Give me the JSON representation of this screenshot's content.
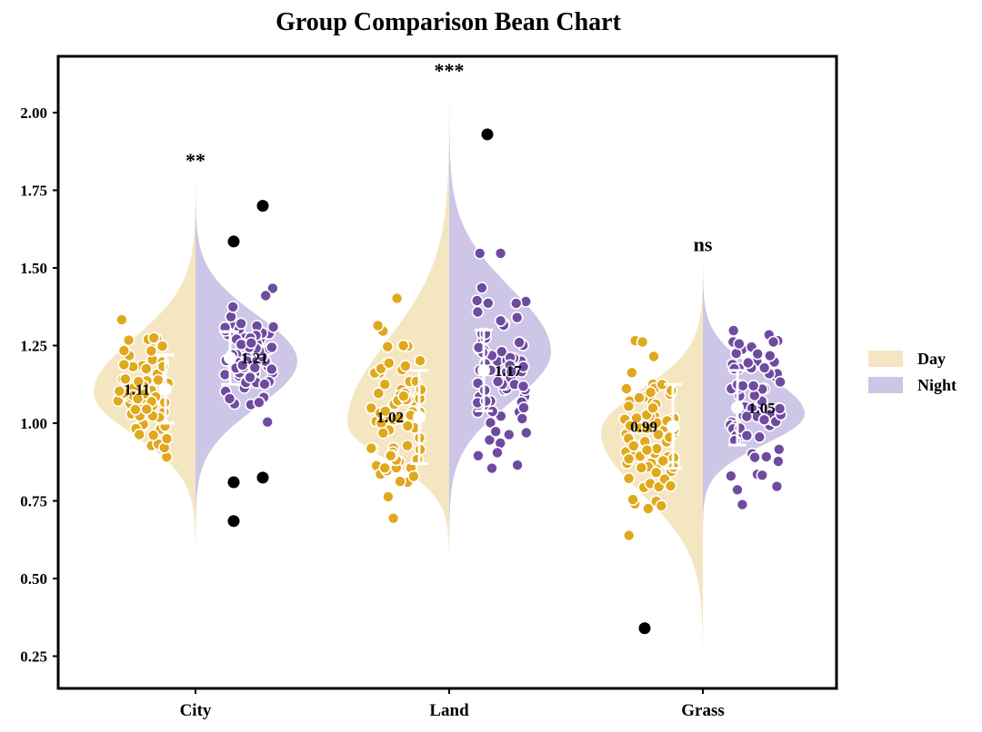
{
  "chart_data": {
    "type": "bean",
    "title": "Group Comparison Bean Chart",
    "xlabel": "",
    "ylabel": "",
    "ylim": [
      0.15,
      2.17
    ],
    "yticks": [
      0.25,
      0.5,
      0.75,
      1.0,
      1.25,
      1.5,
      1.75,
      2.0
    ],
    "ytick_labels": [
      "0.25",
      "0.50",
      "0.75",
      "1.00",
      "1.25",
      "1.50",
      "1.75",
      "2.00"
    ],
    "categories": [
      "City",
      "Land",
      "Grass"
    ],
    "series_names": [
      "Day",
      "Night"
    ],
    "colors": {
      "Day": {
        "fill": "#f5e6c2",
        "point": "#e0a81c"
      },
      "Night": {
        "fill": "#cdc6e6",
        "point": "#6f4ba0"
      },
      "outlier": "#000000",
      "errorbar": "#ffffff"
    },
    "groups": [
      {
        "category": "City",
        "significance": "**",
        "day": {
          "mean": 1.11,
          "mean_label": "1.11",
          "sd": 0.11,
          "min": 0.52,
          "max": 1.83,
          "peak": 1.1,
          "outliers": []
        },
        "night": {
          "mean": 1.21,
          "mean_label": "1.21",
          "sd": 0.085,
          "min": 0.58,
          "max": 1.82,
          "peak": 1.2,
          "outliers": [
            1.585,
            1.7,
            0.81,
            0.825,
            0.685
          ]
        }
      },
      {
        "category": "Land",
        "significance": "***",
        "day": {
          "mean": 1.02,
          "mean_label": "1.02",
          "sd": 0.15,
          "min": 0.5,
          "max": 2.12,
          "peak": 1.0,
          "outliers": []
        },
        "night": {
          "mean": 1.17,
          "mean_label": "1.17",
          "sd": 0.13,
          "min": 0.55,
          "max": 2.09,
          "peak": 1.23,
          "outliers": [
            1.93
          ]
        }
      },
      {
        "category": "Grass",
        "significance": "ns",
        "day": {
          "mean": 0.99,
          "mean_label": "0.99",
          "sd": 0.135,
          "min": 0.15,
          "max": 1.55,
          "peak": 0.97,
          "outliers": [
            0.34
          ]
        },
        "night": {
          "mean": 1.05,
          "mean_label": "1.05",
          "sd": 0.12,
          "min": 0.62,
          "max": 1.56,
          "peak": 1.03,
          "outliers": []
        }
      }
    ],
    "legend": {
      "position": "right",
      "entries": [
        "Day",
        "Night"
      ]
    }
  }
}
